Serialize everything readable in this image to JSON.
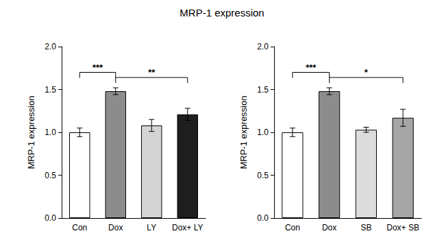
{
  "title": "MRP-1 expression",
  "chart_data": [
    {
      "type": "bar",
      "y_label": "MRP-1 expression",
      "categories": [
        "Con",
        "Dox",
        "LY",
        "Dox+ LY"
      ],
      "values": [
        1.0,
        1.48,
        1.08,
        1.21
      ],
      "errors": [
        0.05,
        0.04,
        0.07,
        0.07
      ],
      "colors": [
        "#ffffff",
        "#8c8c8c",
        "#d4d4d4",
        "#1e1e1e"
      ],
      "ylim": [
        0,
        2
      ],
      "yticks": [
        {
          "value": 0,
          "label": "0.0"
        },
        {
          "value": 0.5,
          "label": "0.5"
        },
        {
          "value": 1,
          "label": "1.0"
        },
        {
          "value": 1.5,
          "label": "1.5"
        },
        {
          "value": 2,
          "label": "2.0"
        }
      ],
      "grid": false,
      "annotations": [
        {
          "from": "Con",
          "to": "Dox",
          "text": "***"
        },
        {
          "from": "Dox",
          "to": "Dox+ LY",
          "text": "**"
        }
      ]
    },
    {
      "type": "bar",
      "y_label": "MRP-1 expression",
      "categories": [
        "Con",
        "Dox",
        "SB",
        "Dox+ SB"
      ],
      "values": [
        1.0,
        1.48,
        1.03,
        1.17
      ],
      "errors": [
        0.05,
        0.04,
        0.03,
        0.1
      ],
      "colors": [
        "#ffffff",
        "#8c8c8c",
        "#dcdcdc",
        "#a6a6a6"
      ],
      "ylim": [
        0,
        2
      ],
      "yticks": [
        {
          "value": 0,
          "label": "0.0"
        },
        {
          "value": 0.5,
          "label": "0.5"
        },
        {
          "value": 1,
          "label": "1.0"
        },
        {
          "value": 1.5,
          "label": "1.5"
        },
        {
          "value": 2,
          "label": "2.0"
        }
      ],
      "grid": false,
      "annotations": [
        {
          "from": "Con",
          "to": "Dox",
          "text": "***"
        },
        {
          "from": "Dox",
          "to": "Dox+ SB",
          "text": "*"
        }
      ]
    }
  ]
}
